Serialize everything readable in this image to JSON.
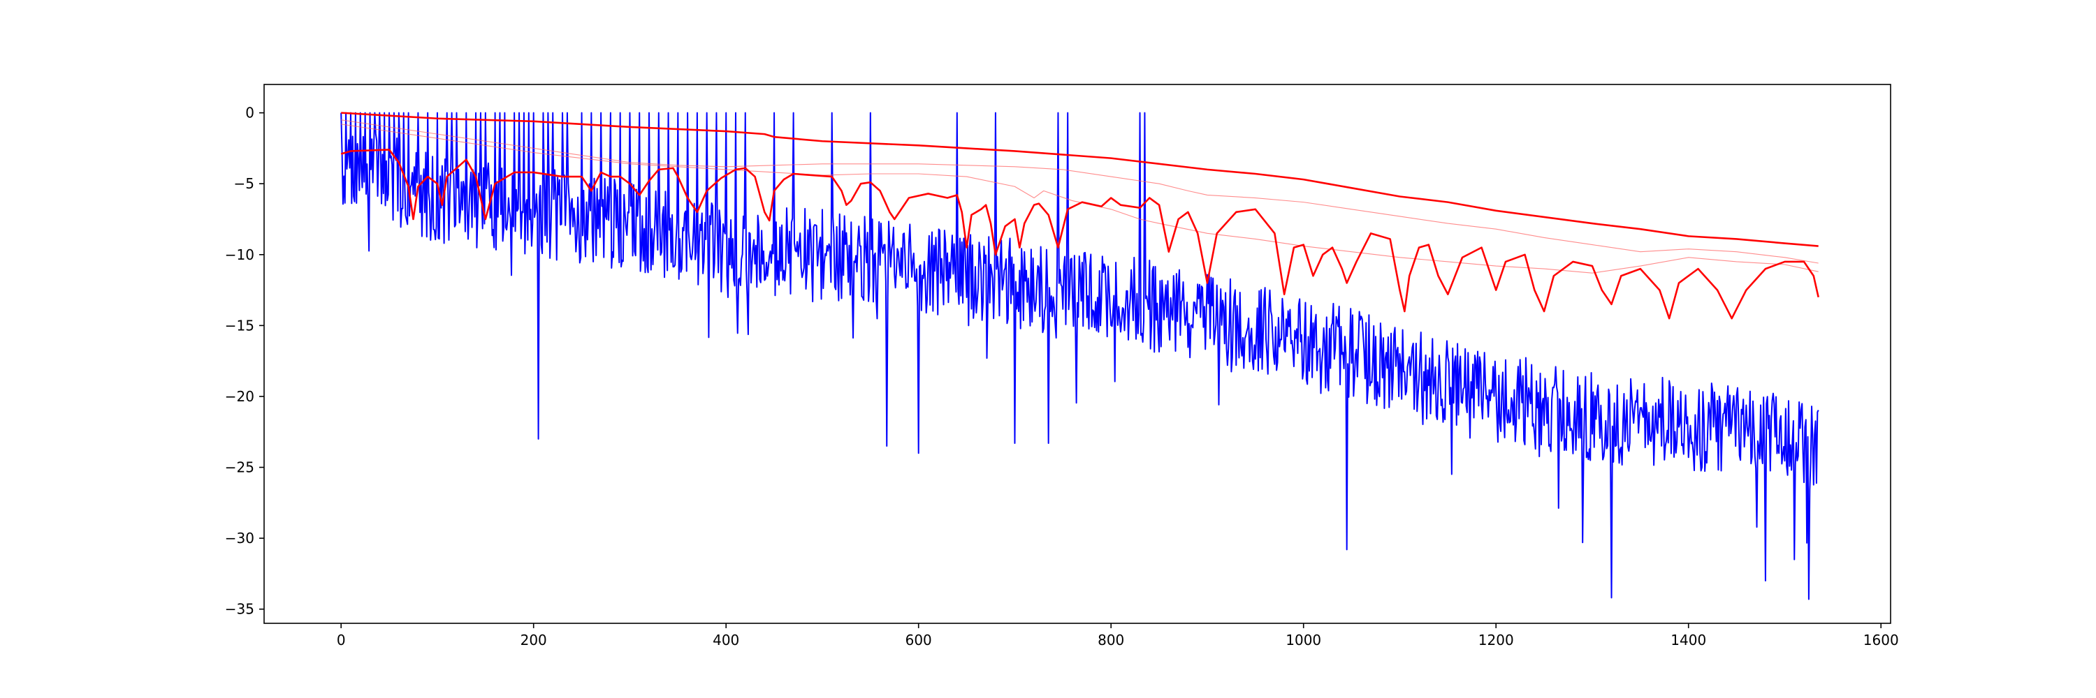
{
  "chart_data": {
    "type": "line",
    "title": "",
    "xlabel": "",
    "ylabel": "",
    "xlim": [
      -80,
      1610
    ],
    "ylim": [
      -36,
      2
    ],
    "xticks": [
      0,
      200,
      400,
      600,
      800,
      1000,
      1200,
      1400,
      1600
    ],
    "yticks": [
      0,
      -5,
      -10,
      -15,
      -20,
      -25,
      -30,
      -35
    ],
    "xtick_labels": [
      "0",
      "200",
      "400",
      "600",
      "800",
      "1000",
      "1200",
      "1400",
      "1600"
    ],
    "ytick_labels": [
      "0",
      "−5",
      "−10",
      "−15",
      "−20",
      "−25",
      "−30",
      "−35"
    ],
    "grid": false,
    "legend": "none",
    "x_max": 1535,
    "series": [
      {
        "color": "#ff0000",
        "style": "thick",
        "points": [
          [
            0,
            0
          ],
          [
            50,
            -0.2
          ],
          [
            100,
            -0.4
          ],
          [
            200,
            -0.6
          ],
          [
            300,
            -1.0
          ],
          [
            400,
            -1.3
          ],
          [
            440,
            -1.5
          ],
          [
            450,
            -1.7
          ],
          [
            500,
            -2.0
          ],
          [
            600,
            -2.3
          ],
          [
            700,
            -2.7
          ],
          [
            800,
            -3.2
          ],
          [
            900,
            -4.0
          ],
          [
            950,
            -4.3
          ],
          [
            1000,
            -4.7
          ],
          [
            1050,
            -5.3
          ],
          [
            1100,
            -5.9
          ],
          [
            1150,
            -6.3
          ],
          [
            1200,
            -6.9
          ],
          [
            1300,
            -7.8
          ],
          [
            1350,
            -8.2
          ],
          [
            1400,
            -8.7
          ],
          [
            1450,
            -8.9
          ],
          [
            1500,
            -9.2
          ],
          [
            1535,
            -9.4
          ]
        ]
      },
      {
        "color": "#ff0000",
        "style": "thick",
        "points": [
          [
            0,
            -2.9
          ],
          [
            10,
            -2.7
          ],
          [
            50,
            -2.6
          ],
          [
            60,
            -3.5
          ],
          [
            70,
            -5.2
          ],
          [
            75,
            -7.5
          ],
          [
            80,
            -5.2
          ],
          [
            90,
            -4.5
          ],
          [
            100,
            -5.0
          ],
          [
            105,
            -6.5
          ],
          [
            110,
            -4.5
          ],
          [
            130,
            -3.3
          ],
          [
            140,
            -4.5
          ],
          [
            150,
            -7.5
          ],
          [
            160,
            -5.0
          ],
          [
            180,
            -4.2
          ],
          [
            200,
            -4.2
          ],
          [
            230,
            -4.5
          ],
          [
            250,
            -4.5
          ],
          [
            260,
            -5.5
          ],
          [
            270,
            -4.2
          ],
          [
            280,
            -4.5
          ],
          [
            290,
            -4.5
          ],
          [
            300,
            -5.0
          ],
          [
            310,
            -5.8
          ],
          [
            320,
            -4.8
          ],
          [
            330,
            -4.0
          ],
          [
            345,
            -3.9
          ],
          [
            350,
            -4.5
          ],
          [
            360,
            -6.0
          ],
          [
            370,
            -7.0
          ],
          [
            380,
            -5.5
          ],
          [
            395,
            -4.6
          ],
          [
            410,
            -4.0
          ],
          [
            420,
            -3.9
          ],
          [
            430,
            -4.5
          ],
          [
            440,
            -7.0
          ],
          [
            445,
            -7.6
          ],
          [
            450,
            -5.5
          ],
          [
            460,
            -4.7
          ],
          [
            470,
            -4.3
          ],
          [
            490,
            -4.4
          ],
          [
            510,
            -4.5
          ],
          [
            520,
            -5.5
          ],
          [
            525,
            -6.5
          ],
          [
            530,
            -6.2
          ],
          [
            540,
            -5.0
          ],
          [
            550,
            -4.9
          ],
          [
            560,
            -5.5
          ],
          [
            570,
            -7.0
          ],
          [
            575,
            -7.5
          ],
          [
            580,
            -7.0
          ],
          [
            590,
            -6.0
          ],
          [
            610,
            -5.7
          ],
          [
            630,
            -6.0
          ],
          [
            640,
            -5.8
          ],
          [
            645,
            -7.0
          ],
          [
            650,
            -9.5
          ],
          [
            655,
            -7.2
          ],
          [
            665,
            -6.8
          ],
          [
            670,
            -6.5
          ],
          [
            675,
            -7.8
          ],
          [
            680,
            -10.0
          ],
          [
            690,
            -8.0
          ],
          [
            700,
            -7.5
          ],
          [
            705,
            -9.5
          ],
          [
            710,
            -7.8
          ],
          [
            720,
            -6.5
          ],
          [
            725,
            -6.4
          ],
          [
            735,
            -7.2
          ],
          [
            745,
            -9.5
          ],
          [
            755,
            -6.8
          ],
          [
            770,
            -6.3
          ],
          [
            790,
            -6.6
          ],
          [
            800,
            -6.0
          ],
          [
            810,
            -6.5
          ],
          [
            820,
            -6.6
          ],
          [
            830,
            -6.7
          ],
          [
            840,
            -6.0
          ],
          [
            850,
            -6.5
          ],
          [
            860,
            -9.8
          ],
          [
            870,
            -7.5
          ],
          [
            880,
            -7.0
          ],
          [
            890,
            -8.5
          ],
          [
            900,
            -12.0
          ],
          [
            910,
            -8.5
          ],
          [
            930,
            -7.0
          ],
          [
            950,
            -6.8
          ],
          [
            970,
            -8.5
          ],
          [
            980,
            -12.8
          ],
          [
            990,
            -9.5
          ],
          [
            1000,
            -9.3
          ],
          [
            1010,
            -11.5
          ],
          [
            1020,
            -10.0
          ],
          [
            1030,
            -9.5
          ],
          [
            1040,
            -11.0
          ],
          [
            1045,
            -12.0
          ],
          [
            1055,
            -10.5
          ],
          [
            1070,
            -8.5
          ],
          [
            1090,
            -8.9
          ],
          [
            1100,
            -12.5
          ],
          [
            1105,
            -14.0
          ],
          [
            1110,
            -11.5
          ],
          [
            1120,
            -9.5
          ],
          [
            1130,
            -9.3
          ],
          [
            1140,
            -11.5
          ],
          [
            1150,
            -12.8
          ],
          [
            1165,
            -10.2
          ],
          [
            1185,
            -9.5
          ],
          [
            1195,
            -11.5
          ],
          [
            1200,
            -12.5
          ],
          [
            1210,
            -10.5
          ],
          [
            1230,
            -10.0
          ],
          [
            1240,
            -12.5
          ],
          [
            1250,
            -14.0
          ],
          [
            1260,
            -11.5
          ],
          [
            1280,
            -10.5
          ],
          [
            1300,
            -10.8
          ],
          [
            1310,
            -12.5
          ],
          [
            1320,
            -13.5
          ],
          [
            1330,
            -11.5
          ],
          [
            1350,
            -11.0
          ],
          [
            1370,
            -12.5
          ],
          [
            1380,
            -14.5
          ],
          [
            1390,
            -12.0
          ],
          [
            1410,
            -11.0
          ],
          [
            1430,
            -12.5
          ],
          [
            1445,
            -14.5
          ],
          [
            1460,
            -12.5
          ],
          [
            1480,
            -11.0
          ],
          [
            1500,
            -10.5
          ],
          [
            1520,
            -10.5
          ],
          [
            1530,
            -11.5
          ],
          [
            1535,
            -13.0
          ]
        ]
      },
      {
        "color": "#ff6666",
        "style": "thin",
        "points": [
          [
            0,
            -0.5
          ],
          [
            50,
            -1.0
          ],
          [
            100,
            -1.5
          ],
          [
            150,
            -2.0
          ],
          [
            200,
            -2.5
          ],
          [
            250,
            -3.0
          ],
          [
            300,
            -3.5
          ],
          [
            350,
            -3.7
          ],
          [
            400,
            -3.8
          ],
          [
            450,
            -3.7
          ],
          [
            500,
            -3.6
          ],
          [
            550,
            -3.6
          ],
          [
            600,
            -3.6
          ],
          [
            650,
            -3.7
          ],
          [
            700,
            -3.8
          ],
          [
            750,
            -4.0
          ],
          [
            800,
            -4.5
          ],
          [
            850,
            -5.0
          ],
          [
            880,
            -5.5
          ],
          [
            900,
            -5.8
          ],
          [
            950,
            -6.0
          ],
          [
            1000,
            -6.3
          ],
          [
            1050,
            -6.8
          ],
          [
            1100,
            -7.3
          ],
          [
            1150,
            -7.8
          ],
          [
            1200,
            -8.2
          ],
          [
            1250,
            -8.8
          ],
          [
            1300,
            -9.3
          ],
          [
            1350,
            -9.8
          ],
          [
            1400,
            -9.6
          ],
          [
            1450,
            -9.8
          ],
          [
            1500,
            -10.2
          ],
          [
            1535,
            -10.6
          ]
        ]
      },
      {
        "color": "#ff6666",
        "style": "thin",
        "points": [
          [
            0,
            -0.8
          ],
          [
            100,
            -1.8
          ],
          [
            200,
            -2.8
          ],
          [
            300,
            -3.6
          ],
          [
            400,
            -4.0
          ],
          [
            450,
            -4.2
          ],
          [
            500,
            -4.4
          ],
          [
            550,
            -4.3
          ],
          [
            600,
            -4.3
          ],
          [
            650,
            -4.5
          ],
          [
            700,
            -5.2
          ],
          [
            720,
            -6.0
          ],
          [
            730,
            -5.5
          ],
          [
            760,
            -6.2
          ],
          [
            800,
            -6.8
          ],
          [
            830,
            -7.5
          ],
          [
            850,
            -7.8
          ],
          [
            900,
            -8.5
          ],
          [
            950,
            -8.9
          ],
          [
            1000,
            -9.4
          ],
          [
            1050,
            -9.8
          ],
          [
            1100,
            -10.2
          ],
          [
            1150,
            -10.5
          ],
          [
            1200,
            -10.8
          ],
          [
            1250,
            -11.0
          ],
          [
            1300,
            -11.3
          ],
          [
            1350,
            -10.8
          ],
          [
            1400,
            -10.2
          ],
          [
            1450,
            -10.5
          ],
          [
            1500,
            -10.7
          ],
          [
            1535,
            -11.2
          ]
        ]
      },
      {
        "color": "#0000ff",
        "style": "noisy",
        "seed": 7,
        "base": [
          [
            0,
            -3.5
          ],
          [
            100,
            -6.0
          ],
          [
            200,
            -7.0
          ],
          [
            300,
            -8.0
          ],
          [
            400,
            -9.5
          ],
          [
            500,
            -10.0
          ],
          [
            600,
            -11.0
          ],
          [
            700,
            -12.0
          ],
          [
            800,
            -13.0
          ],
          [
            900,
            -14.5
          ],
          [
            1000,
            -16.0
          ],
          [
            1100,
            -18.0
          ],
          [
            1200,
            -20.0
          ],
          [
            1300,
            -21.5
          ],
          [
            1400,
            -22.0
          ],
          [
            1500,
            -23.0
          ],
          [
            1535,
            -23.5
          ]
        ],
        "amplitude": 3.2,
        "spikes_to": 0,
        "spike_x": [
          0,
          5,
          10,
          15,
          20,
          25,
          30,
          35,
          40,
          45,
          50,
          55,
          60,
          65,
          70,
          80,
          90,
          100,
          110,
          115,
          120,
          130,
          140,
          145,
          150,
          160,
          165,
          170,
          180,
          185,
          190,
          195,
          200,
          210,
          215,
          220,
          230,
          235,
          250,
          260,
          270,
          280,
          290,
          300,
          310,
          320,
          330,
          340,
          350,
          360,
          370,
          380,
          390,
          400,
          410,
          420,
          450,
          470,
          510,
          550,
          640,
          680,
          745,
          755,
          830,
          835
        ],
        "dips": [
          [
            205,
            -23.0
          ],
          [
            600,
            -24.0
          ],
          [
            567,
            -23.5
          ],
          [
            700,
            -23.3
          ],
          [
            735,
            -23.3
          ],
          [
            1045,
            -30.8
          ],
          [
            1290,
            -30.3
          ],
          [
            1320,
            -34.2
          ],
          [
            1480,
            -33.0
          ],
          [
            1510,
            -31.5
          ],
          [
            1525,
            -34.3
          ]
        ],
        "clip_min": -35
      }
    ]
  }
}
